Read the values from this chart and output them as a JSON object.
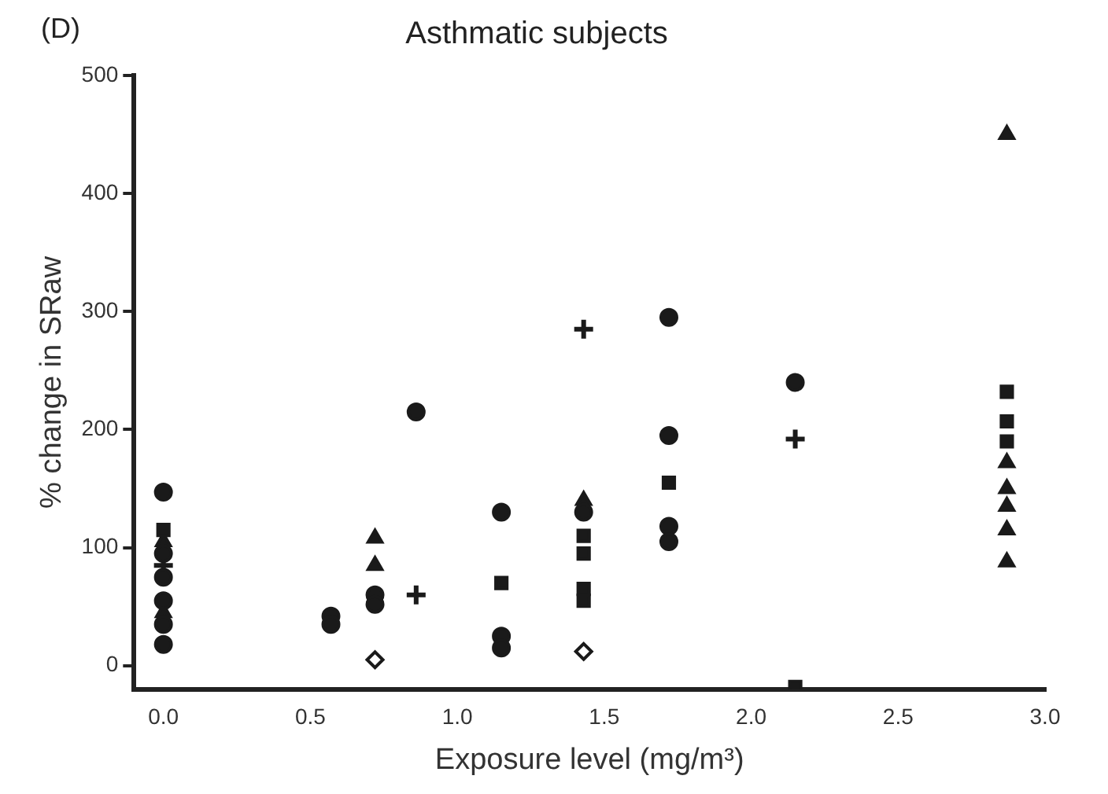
{
  "chart_data": {
    "type": "scatter",
    "title": "Asthmatic subjects",
    "xlabel": "Exposure level (mg/m³)",
    "ylabel": "% change in SRaw",
    "annotations": [
      "(D)"
    ],
    "series": [
      {
        "marker": "circle",
        "color": "#1a1a1a",
        "x": [
          0,
          0,
          0,
          0,
          0,
          0,
          0.57,
          0.57,
          0.72,
          0.72,
          0.86,
          1.15,
          1.15,
          1.15,
          1.43,
          1.72,
          1.72,
          1.72,
          1.72,
          2.15
        ],
        "values": [
          147,
          95,
          75,
          55,
          35,
          18,
          42,
          35,
          60,
          52,
          215,
          130,
          25,
          15,
          130,
          295,
          195,
          118,
          105,
          240
        ]
      },
      {
        "marker": "square",
        "color": "#1a1a1a",
        "x": [
          0,
          1.15,
          1.43,
          1.43,
          1.43,
          1.43,
          1.72,
          2.15,
          2.87,
          2.87,
          2.87
        ],
        "values": [
          115,
          70,
          110,
          95,
          65,
          55,
          155,
          -18,
          232,
          207,
          190
        ]
      },
      {
        "marker": "triangle",
        "color": "#1a1a1a",
        "x": [
          0,
          0,
          0.72,
          0.72,
          1.43,
          2.87,
          2.87,
          2.87,
          2.87,
          2.87,
          2.87
        ],
        "values": [
          105,
          45,
          108,
          85,
          140,
          450,
          172,
          150,
          135,
          115,
          88
        ]
      },
      {
        "marker": "diamond",
        "color": "#1a1a1a",
        "x": [
          0.72,
          1.43
        ],
        "values": [
          5,
          12
        ]
      },
      {
        "marker": "cross",
        "color": "#1a1a1a",
        "x": [
          0,
          0.86,
          1.43,
          2.15
        ],
        "values": [
          85,
          60,
          285,
          192
        ]
      }
    ],
    "xlim": [
      -0.1,
      3.0
    ],
    "xticks": [
      {
        "value": 0,
        "label": "0.0"
      },
      {
        "value": 0.5,
        "label": "0.5"
      },
      {
        "value": 1,
        "label": "1.0"
      },
      {
        "value": 1.5,
        "label": "1.5"
      },
      {
        "value": 2,
        "label": "2.0"
      },
      {
        "value": 2.5,
        "label": "2.5"
      },
      {
        "value": 3,
        "label": "3.0"
      }
    ],
    "ylim": [
      -20,
      500
    ],
    "yticks": [
      0,
      100,
      200,
      300,
      400,
      500
    ],
    "grid": false,
    "legend": false
  }
}
